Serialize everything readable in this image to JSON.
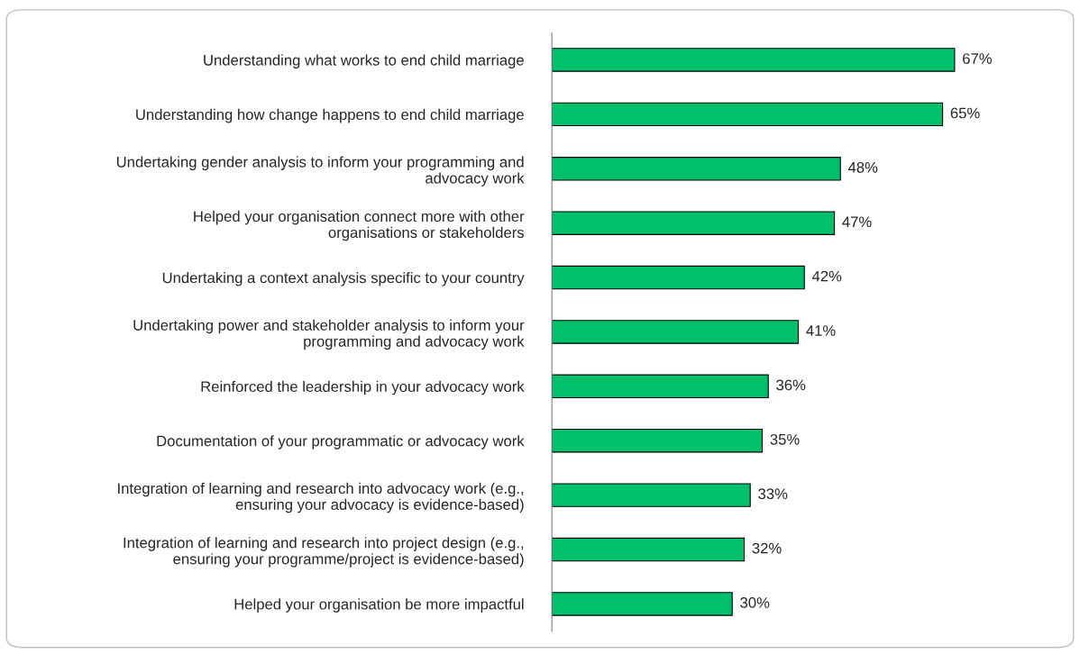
{
  "chart_data": {
    "type": "bar",
    "orientation": "horizontal",
    "categories": [
      "Understanding what works to end child marriage",
      "Understanding how change happens to end child marriage",
      "Undertaking gender analysis to inform your programming and\nadvocacy work",
      "Helped your organisation connect more with other\norganisations or stakeholders",
      "Undertaking a context analysis specific to your country",
      "Undertaking power and stakeholder analysis to inform your\nprogramming and advocacy work",
      "Reinforced the leadership in your advocacy work",
      "Documentation of your programmatic or advocacy work",
      "Integration of learning and research into advocacy work (e.g.,\nensuring your advocacy is evidence-based)",
      "Integration of learning and research into project design (e.g.,\nensuring your programme/project is evidence-based)",
      "Helped your organisation be more impactful"
    ],
    "values": [
      67,
      65,
      48,
      47,
      42,
      41,
      36,
      35,
      33,
      32,
      30
    ],
    "value_labels": [
      "67%",
      "65%",
      "48%",
      "47%",
      "42%",
      "41%",
      "36%",
      "35%",
      "33%",
      "32%",
      "30%"
    ],
    "color": "#00c06b",
    "grid": false,
    "legend": false
  }
}
